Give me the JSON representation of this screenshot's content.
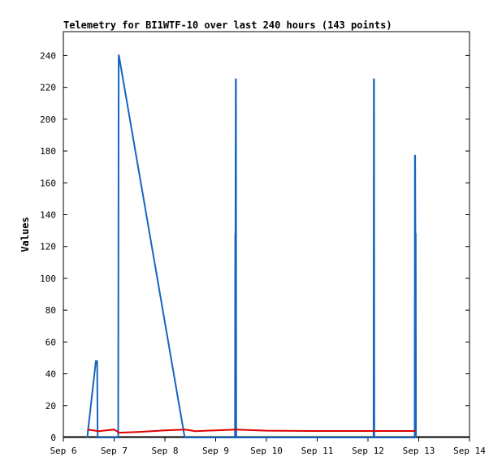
{
  "chart_data": {
    "type": "line",
    "title": "Telemetry for BI1WTF-10 over last 240 hours (143 points)",
    "xlabel": "",
    "ylabel": "Values",
    "x_tick_labels": [
      "Sep 6",
      "Sep 7",
      "Sep 8",
      "Sep 9",
      "Sep 10",
      "Sep 11",
      "Sep 12",
      "Sep 13",
      "Sep 14"
    ],
    "x_unit": "days since Sep 6 00:00",
    "xlim": [
      0,
      8
    ],
    "ylim": [
      0,
      255
    ],
    "y_ticks": [
      0,
      20,
      40,
      60,
      80,
      100,
      120,
      140,
      160,
      180,
      200,
      220,
      240
    ],
    "grid": false,
    "legend": "none",
    "series": [
      {
        "color": "#1565C0",
        "x": [
          0.47,
          0.64,
          0.665,
          0.675,
          1.08,
          1.085,
          1.09,
          1.095,
          2.39,
          2.395,
          3.38,
          3.385,
          3.39,
          3.395,
          3.4,
          3.405,
          6.11,
          6.115,
          6.12,
          6.125,
          6.92,
          6.925,
          6.93,
          6.935,
          6.94,
          6.945
        ],
        "y": [
          0,
          48,
          48,
          0,
          0,
          121,
          240,
          240,
          0,
          0,
          0,
          128,
          128,
          225,
          225,
          0,
          0,
          225,
          225,
          0,
          0,
          177,
          177,
          128,
          128,
          0
        ]
      },
      {
        "color": "#DD0000",
        "x": [
          0.47,
          0.7,
          1.0,
          1.1,
          1.5,
          2.0,
          2.4,
          2.5,
          2.6,
          3.0,
          3.4,
          4.0,
          5.0,
          6.0,
          6.94
        ],
        "y": [
          5,
          4,
          5,
          3,
          3.5,
          4.5,
          5,
          4.5,
          4,
          4.5,
          5,
          4.3,
          4.1,
          4.1,
          4.1
        ]
      }
    ]
  }
}
